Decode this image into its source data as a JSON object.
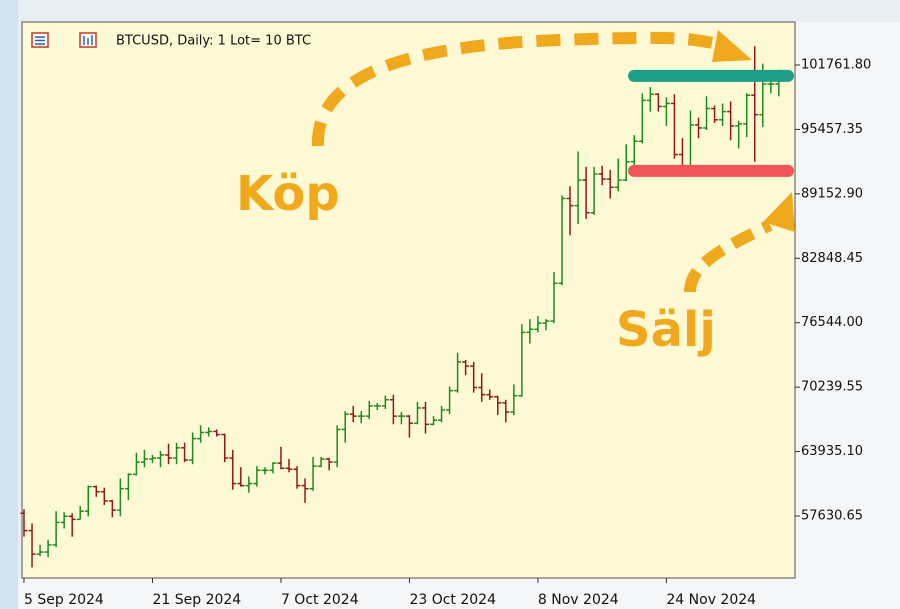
{
  "chart_data": {
    "type": "ohlc",
    "title": "BTCUSD, Daily:  1 Lot= 10 BTC",
    "categories": [
      "5 Sep 2024",
      null,
      null,
      null,
      null,
      null,
      null,
      null,
      null,
      null,
      null,
      null,
      null,
      null,
      null,
      null,
      "21 Sep 2024",
      null,
      null,
      null,
      null,
      null,
      null,
      null,
      null,
      null,
      null,
      null,
      null,
      null,
      null,
      null,
      "7 Oct 2024",
      null,
      null,
      null,
      null,
      null,
      null,
      null,
      null,
      null,
      null,
      null,
      null,
      null,
      null,
      null,
      "23 Oct 2024",
      null,
      null,
      null,
      null,
      null,
      null,
      null,
      null,
      null,
      null,
      null,
      null,
      null,
      null,
      null,
      "8 Nov 2024",
      null,
      null,
      null,
      null,
      null,
      null,
      null,
      null,
      null,
      null,
      null,
      null,
      null,
      null,
      null,
      "24 Nov 2024",
      null,
      null,
      null,
      null,
      null,
      null,
      null,
      null,
      null,
      null,
      null,
      null,
      null,
      null
    ],
    "open": [
      57900,
      56200,
      53900,
      54100,
      54800,
      57000,
      57600,
      57300,
      58100,
      60500,
      60000,
      59100,
      58200,
      60300,
      61700,
      62900,
      63200,
      63300,
      63600,
      63300,
      64300,
      63100,
      65200,
      65800,
      65900,
      65600,
      63300,
      60800,
      60600,
      60800,
      62100,
      62100,
      62800,
      62300,
      62200,
      60600,
      60300,
      62500,
      63200,
      62900,
      66100,
      67600,
      67400,
      67400,
      68400,
      68400,
      69000,
      67400,
      67400,
      66700,
      68200,
      66600,
      67000,
      68000,
      69900,
      72700,
      72300,
      70200,
      69500,
      69300,
      68700,
      67800,
      69400,
      75600,
      75900,
      76500,
      76700,
      80400,
      88700,
      88000,
      90500,
      87300,
      91100,
      90600,
      89800,
      90500,
      92300,
      94300,
      98300,
      98900,
      97700,
      98000,
      93000,
      91900,
      95900,
      95600,
      97500,
      96400,
      97200,
      95800,
      96000,
      98800,
      96900,
      99900,
      99900
    ],
    "high": [
      58300,
      56900,
      54800,
      55300,
      58100,
      58000,
      57900,
      58600,
      60600,
      60600,
      60400,
      59200,
      61300,
      61800,
      63800,
      64100,
      63600,
      64000,
      64700,
      64800,
      64800,
      65800,
      66500,
      66300,
      66100,
      65700,
      64100,
      62400,
      61500,
      62500,
      62400,
      62900,
      64400,
      63200,
      62500,
      61300,
      63400,
      63400,
      63300,
      66500,
      67900,
      68400,
      67900,
      68900,
      68700,
      69400,
      69500,
      67800,
      67500,
      68800,
      68800,
      67400,
      68400,
      70300,
      73600,
      72900,
      72700,
      71600,
      70000,
      69400,
      69000,
      70500,
      76400,
      76900,
      77200,
      76900,
      81500,
      89000,
      89900,
      93300,
      91800,
      91800,
      91900,
      91500,
      92600,
      94000,
      94900,
      99000,
      99600,
      99000,
      98600,
      98900,
      94600,
      97300,
      96600,
      98700,
      97800,
      98000,
      98200,
      96300,
      99000,
      103600,
      101900,
      100500,
      101300
    ],
    "low": [
      55600,
      52600,
      53700,
      53600,
      54600,
      56400,
      55600,
      57300,
      57600,
      59500,
      58700,
      57500,
      57600,
      59200,
      61600,
      62400,
      62800,
      62400,
      62700,
      62700,
      62900,
      62700,
      64800,
      65400,
      65400,
      62900,
      60200,
      60500,
      59900,
      60500,
      61700,
      61800,
      62200,
      61900,
      60300,
      58900,
      60100,
      62400,
      62100,
      62400,
      64800,
      66800,
      66700,
      67100,
      68000,
      68100,
      66600,
      66600,
      65300,
      66600,
      65700,
      66500,
      66800,
      67600,
      69700,
      71400,
      69700,
      68800,
      69000,
      67500,
      66800,
      67500,
      69300,
      74500,
      75600,
      75800,
      76500,
      80200,
      85100,
      86200,
      86700,
      87100,
      90000,
      88700,
      89400,
      90400,
      91500,
      94100,
      97200,
      97200,
      95800,
      92600,
      90800,
      91800,
      94600,
      95400,
      96100,
      95800,
      94400,
      93600,
      94700,
      92300,
      95700,
      99000,
      98700
    ],
    "close": [
      56200,
      53900,
      54100,
      54800,
      57000,
      57600,
      57300,
      58100,
      60500,
      60000,
      59100,
      58200,
      60300,
      61700,
      62900,
      63200,
      63300,
      63600,
      63300,
      64300,
      63100,
      65200,
      65800,
      65900,
      65600,
      63300,
      60800,
      60600,
      60800,
      62100,
      62100,
      62800,
      62300,
      62200,
      60600,
      60300,
      62500,
      63200,
      62900,
      66100,
      67600,
      67400,
      67400,
      68400,
      68400,
      69000,
      67400,
      67400,
      66700,
      68200,
      66600,
      67000,
      68000,
      69900,
      72700,
      72300,
      70200,
      69500,
      69300,
      68700,
      67800,
      69400,
      75600,
      75900,
      76500,
      76700,
      80400,
      88700,
      88000,
      90500,
      87300,
      91100,
      90600,
      89800,
      90500,
      92300,
      94300,
      98300,
      98900,
      97700,
      98000,
      93000,
      91900,
      95900,
      95600,
      97500,
      96400,
      97200,
      95800,
      96000,
      98800,
      96900,
      99900,
      99900,
      101100
    ],
    "up_color": "#1f8a1f",
    "down_color": "#8e1b1b",
    "ylim": [
      51560,
      105970
    ],
    "yticks": [
      {
        "value": 101761.8,
        "label": "101761.80"
      },
      95457.35,
      {
        "value": 89152.9,
        "label": "89152.90"
      },
      82848.45,
      {
        "value": 76544,
        "label": "76544.00"
      },
      70239.55,
      {
        "value": 63935.1,
        "label": "63935.10"
      },
      57630.65
    ],
    "levels": [
      {
        "value": 100700,
        "color": "#1d9e88"
      },
      {
        "value": 91400,
        "color": "#ef5458"
      }
    ],
    "annotations": [
      "Köp",
      "Sälj"
    ]
  }
}
